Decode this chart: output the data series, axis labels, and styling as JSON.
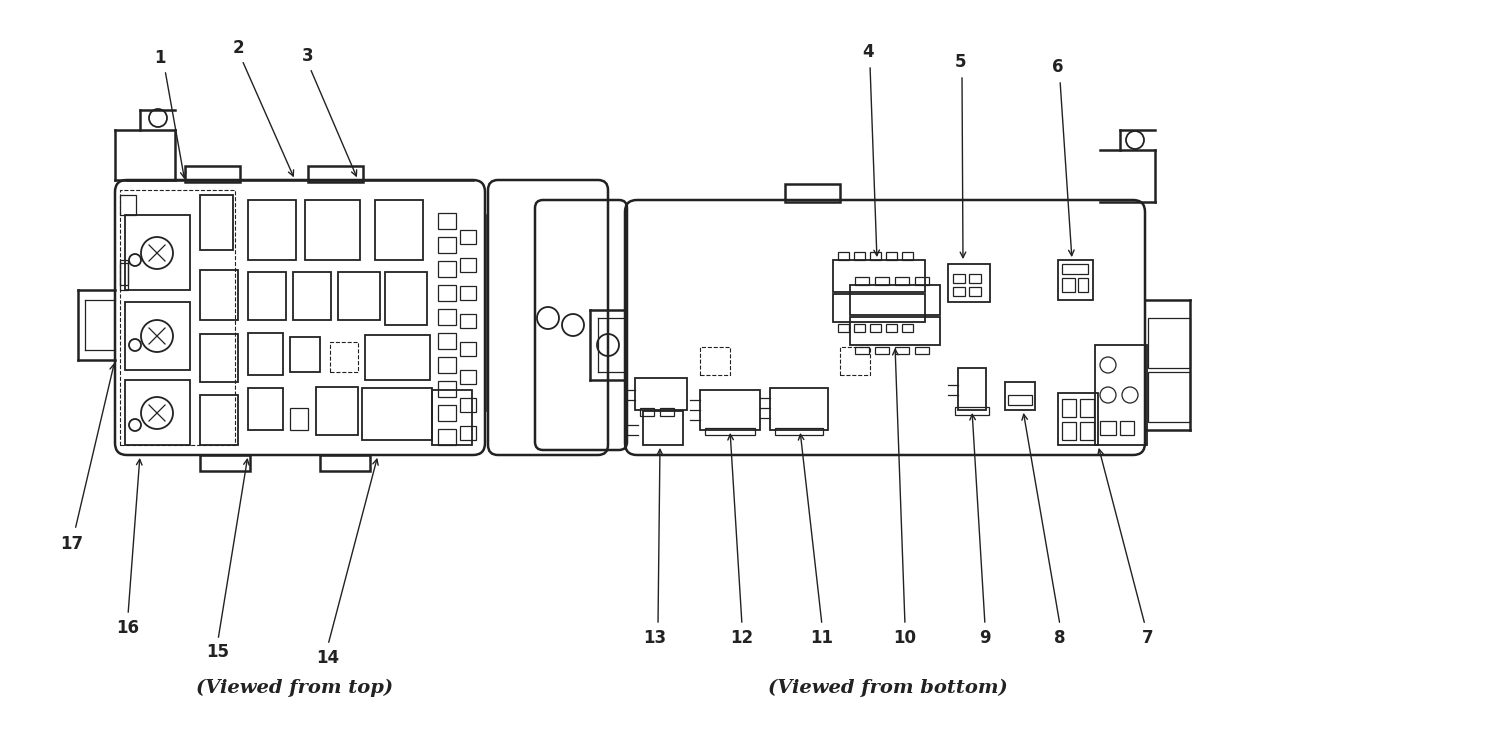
{
  "bg_color": "#ffffff",
  "line_color": "#222222",
  "left_caption": "(Viewed from top)",
  "right_caption": "(Viewed from bottom)",
  "label_fontsize": 12,
  "caption_fontsize": 14
}
